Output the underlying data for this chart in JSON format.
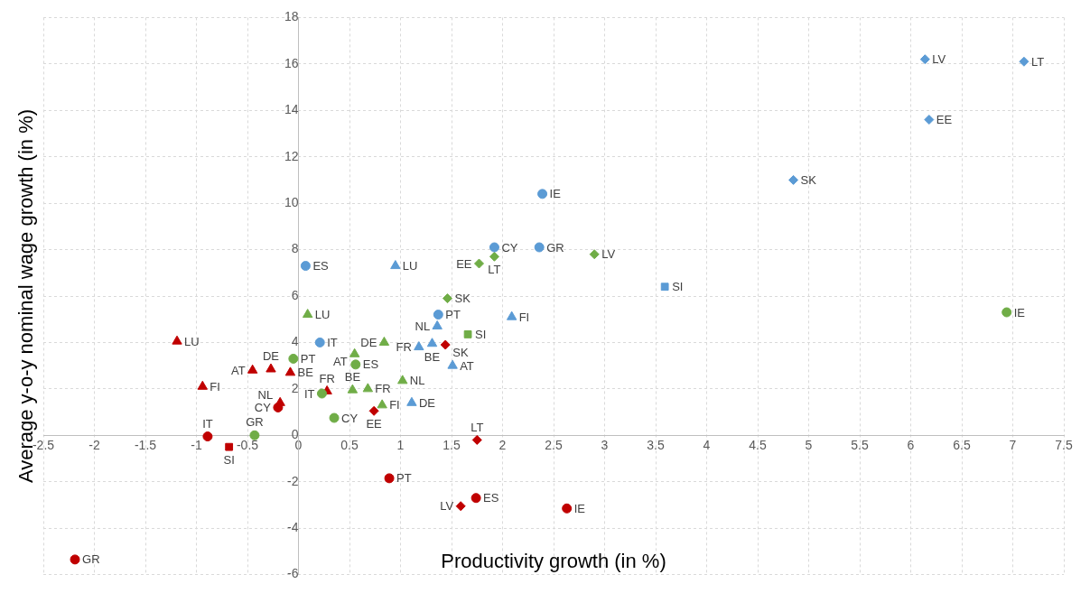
{
  "chart_data": {
    "type": "scatter",
    "xlabel": "Productivity growth (in %)",
    "ylabel": "Average y-o-y nominal wage growth (in %)",
    "xlim": [
      -2.5,
      7.5
    ],
    "xticks": [
      -2.5,
      -2,
      -1.5,
      -1,
      -0.5,
      0,
      0.5,
      1,
      1.5,
      2,
      2.5,
      3,
      3.5,
      4,
      4.5,
      5,
      5.5,
      6,
      6.5,
      7,
      7.5
    ],
    "ylim": [
      -6,
      18
    ],
    "yticks": [
      -6,
      -4,
      -2,
      0,
      2,
      4,
      6,
      8,
      10,
      12,
      14,
      16,
      18
    ],
    "grid": true,
    "legend": false,
    "series": [
      {
        "color": "#5b9bd5",
        "marker": "circle",
        "x": [
          0.07,
          0.21,
          1.37,
          1.92,
          2.36,
          2.39
        ],
        "values": [
          7.3,
          4.0,
          5.2,
          8.1,
          8.1,
          10.4
        ],
        "value_labels": [
          "ES",
          "IT",
          "PT",
          "CY",
          "GR",
          "IE"
        ]
      },
      {
        "color": "#5b9bd5",
        "marker": "diamond",
        "x": [
          6.14,
          7.11,
          6.18,
          4.85
        ],
        "values": [
          16.2,
          16.1,
          13.6,
          11.0
        ],
        "value_labels": [
          "LV",
          "LT",
          "EE",
          "SK"
        ]
      },
      {
        "color": "#5b9bd5",
        "marker": "triangle",
        "x": [
          0.95,
          2.09,
          1.36,
          1.18,
          1.31,
          1.51,
          1.11
        ],
        "values": [
          7.3,
          5.1,
          4.7,
          3.8,
          3.95,
          3.0,
          1.4
        ],
        "value_labels": [
          "LU",
          "FI",
          "NL",
          "FR",
          "BE",
          "AT",
          "DE"
        ]
      },
      {
        "color": "#5b9bd5",
        "marker": "square",
        "x": [
          3.59
        ],
        "values": [
          6.4
        ],
        "value_labels": [
          "SI"
        ]
      },
      {
        "color": "#70ad47",
        "marker": "circle",
        "x": [
          6.94,
          -0.05,
          0.56,
          0.23,
          0.35,
          -0.43
        ],
        "values": [
          5.3,
          3.3,
          3.05,
          1.8,
          0.75,
          0.0
        ],
        "value_labels": [
          "IE",
          "PT",
          "ES",
          "IT",
          "CY",
          "GR"
        ]
      },
      {
        "color": "#70ad47",
        "marker": "diamond",
        "x": [
          1.46,
          1.77,
          1.92,
          2.9
        ],
        "values": [
          5.9,
          7.4,
          7.7,
          7.8
        ],
        "value_labels": [
          "SK",
          "EE",
          "LT",
          "LV"
        ]
      },
      {
        "color": "#70ad47",
        "marker": "triangle",
        "x": [
          0.09,
          0.84,
          0.55,
          0.53,
          0.68,
          1.02,
          0.82
        ],
        "values": [
          5.2,
          4.0,
          3.5,
          1.95,
          2.0,
          2.35,
          1.3
        ],
        "value_labels": [
          "LU",
          "DE",
          "AT",
          "BE",
          "FR",
          "NL",
          "FI"
        ]
      },
      {
        "color": "#70ad47",
        "marker": "square",
        "x": [
          1.66
        ],
        "values": [
          4.35
        ],
        "value_labels": [
          "SI"
        ]
      },
      {
        "color": "#c00000",
        "marker": "circle",
        "x": [
          -0.89,
          -2.19,
          0.89,
          1.74,
          2.63,
          -0.2
        ],
        "values": [
          -0.05,
          -5.35,
          -1.85,
          -2.7,
          -3.15,
          1.2
        ],
        "value_labels": [
          "IT",
          "GR",
          "PT",
          "ES",
          "IE",
          "CY"
        ]
      },
      {
        "color": "#c00000",
        "marker": "square",
        "x": [
          -0.68
        ],
        "values": [
          -0.5
        ],
        "value_labels": [
          "SI"
        ]
      },
      {
        "color": "#c00000",
        "marker": "diamond",
        "x": [
          1.44,
          0.74,
          1.75,
          1.59
        ],
        "values": [
          3.9,
          1.05,
          -0.2,
          -3.05
        ],
        "value_labels": [
          "SK",
          "EE",
          "LT",
          "LV"
        ]
      },
      {
        "color": "#c00000",
        "marker": "triangle",
        "x": [
          -1.19,
          -0.94,
          -0.45,
          -0.27,
          -0.08,
          0.28,
          -0.18
        ],
        "values": [
          4.05,
          2.1,
          2.8,
          2.85,
          2.7,
          1.9,
          1.4
        ],
        "value_labels": [
          "LU",
          "FI",
          "AT",
          "DE",
          "BE",
          "FR",
          "NL"
        ]
      }
    ]
  }
}
